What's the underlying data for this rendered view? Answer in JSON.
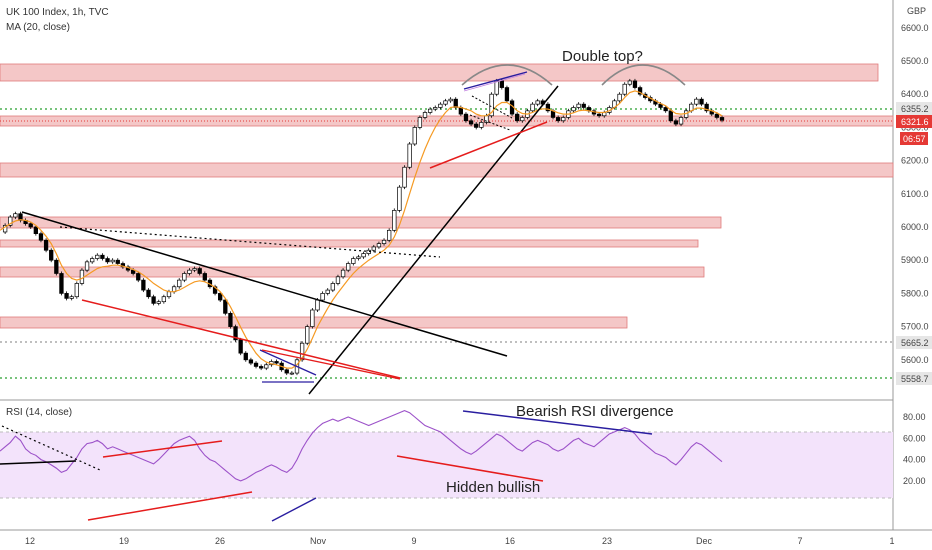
{
  "header": {
    "title": "UK 100 Index, 1h, TVC",
    "ma_label": "MA (20, close)",
    "rsi_label": "RSI (14, close)",
    "currency": "GBP"
  },
  "annotations": {
    "double_top": "Double top?",
    "bearish_div": "Bearish RSI divergence",
    "hidden_bullish": "Hidden bullish"
  },
  "badges": {
    "upper_level": "6355.2",
    "last_price": "6321.6",
    "countdown": "06:57",
    "mid_level": "5665.2",
    "low_level": "5558.7"
  },
  "colors": {
    "candle": "#000000",
    "ma": "#f59a23",
    "rsi": "#9c52c9",
    "rsi_band": "#f3e3fb",
    "zone": "#f4c7c7",
    "zone_border": "#e07a7a",
    "red_line": "#e51c1c",
    "blue_line": "#2a1ea0",
    "green_dots": "#4caf50",
    "badge_red": "#e53935",
    "badge_gray": "#e6e6e6"
  },
  "chart_data": {
    "type": "line",
    "title": "UK 100 Index, 1h, TVC",
    "price_axis": {
      "ticks": [
        "6600.0",
        "6500.0",
        "6400.0",
        "6300.0",
        "6200.0",
        "6100.0",
        "6000.0",
        "5900.0",
        "5800.0",
        "5700.0",
        "5600.0"
      ],
      "range": [
        5525,
        6650
      ]
    },
    "rsi_axis": {
      "ticks": [
        "80.00",
        "60.00",
        "40.00",
        "20.00"
      ],
      "range": [
        12,
        90
      ],
      "band": [
        30,
        70
      ]
    },
    "x_ticks": [
      "12",
      "19",
      "26",
      "Nov",
      "9",
      "16",
      "23",
      "Dec",
      "7",
      "1"
    ],
    "series": [
      {
        "name": "UK 100 Index",
        "values": [
          5985,
          6005,
          6030,
          6040,
          6020,
          6010,
          6000,
          5980,
          5960,
          5930,
          5900,
          5860,
          5800,
          5785,
          5790,
          5830,
          5870,
          5895,
          5905,
          5915,
          5905,
          5895,
          5900,
          5890,
          5880,
          5870,
          5860,
          5840,
          5810,
          5790,
          5770,
          5775,
          5790,
          5805,
          5820,
          5840,
          5860,
          5870,
          5875,
          5860,
          5840,
          5820,
          5800,
          5780,
          5740,
          5700,
          5660,
          5620,
          5600,
          5590,
          5580,
          5575,
          5585,
          5595,
          5590,
          5570,
          5560,
          5560,
          5600,
          5650,
          5700,
          5750,
          5780,
          5800,
          5810,
          5830,
          5850,
          5870,
          5890,
          5905,
          5910,
          5920,
          5930,
          5940,
          5950,
          5960,
          5990,
          6050,
          6120,
          6180,
          6250,
          6300,
          6330,
          6345,
          6355,
          6360,
          6370,
          6380,
          6385,
          6360,
          6340,
          6320,
          6310,
          6300,
          6315,
          6335,
          6400,
          6440,
          6420,
          6380,
          6340,
          6320,
          6330,
          6350,
          6370,
          6380,
          6370,
          6350,
          6330,
          6320,
          6330,
          6350,
          6360,
          6370,
          6360,
          6350,
          6340,
          6335,
          6345,
          6360,
          6380,
          6400,
          6430,
          6440,
          6420,
          6400,
          6390,
          6380,
          6370,
          6360,
          6350,
          6320,
          6310,
          6330,
          6350,
          6370,
          6385,
          6370,
          6350,
          6340,
          6330,
          6321.6
        ]
      },
      {
        "name": "MA (20, close)",
        "values": [
          5990,
          6000,
          6010,
          6018,
          6022,
          6020,
          6015,
          6005,
          5990,
          5972,
          5950,
          5920,
          5885,
          5860,
          5845,
          5840,
          5845,
          5855,
          5865,
          5875,
          5880,
          5882,
          5885,
          5885,
          5882,
          5878,
          5872,
          5865,
          5855,
          5843,
          5830,
          5820,
          5810,
          5805,
          5805,
          5810,
          5818,
          5827,
          5835,
          5838,
          5835,
          5828,
          5818,
          5805,
          5785,
          5760,
          5730,
          5698,
          5668,
          5643,
          5620,
          5603,
          5593,
          5588,
          5585,
          5580,
          5575,
          5575,
          5585,
          5605,
          5632,
          5665,
          5700,
          5728,
          5755,
          5780,
          5802,
          5822,
          5842,
          5860,
          5875,
          5888,
          5900,
          5910,
          5920,
          5930,
          5945,
          5970,
          6005,
          6050,
          6100,
          6150,
          6195,
          6235,
          6270,
          6300,
          6325,
          6345,
          6360,
          6362,
          6360,
          6355,
          6350,
          6340,
          6335,
          6335,
          6345,
          6365,
          6375,
          6375,
          6365,
          6350,
          6342,
          6340,
          6345,
          6352,
          6356,
          6355,
          6350,
          6344,
          6340,
          6340,
          6344,
          6350,
          6352,
          6350,
          6347,
          6345,
          6345,
          6350,
          6360,
          6372,
          6390,
          6405,
          6410,
          6405,
          6396,
          6388,
          6380,
          6372,
          6365,
          6352,
          6342,
          6340,
          6342,
          6350,
          6358,
          6358,
          6354,
          6350,
          6344,
          6335
        ]
      },
      {
        "name": "RSI (14, close)",
        "values": [
          48,
          52,
          56,
          62,
          58,
          50,
          46,
          44,
          40,
          38,
          35,
          32,
          28,
          30,
          36,
          42,
          50,
          55,
          56,
          58,
          55,
          50,
          52,
          50,
          48,
          46,
          44,
          42,
          40,
          38,
          36,
          40,
          45,
          50,
          55,
          58,
          60,
          62,
          58,
          50,
          44,
          40,
          38,
          34,
          30,
          26,
          22,
          20,
          22,
          25,
          28,
          30,
          33,
          35,
          33,
          30,
          28,
          32,
          40,
          50,
          58,
          65,
          70,
          74,
          76,
          78,
          76,
          78,
          80,
          78,
          76,
          74,
          72,
          74,
          76,
          78,
          80,
          82,
          84,
          86,
          84,
          80,
          76,
          72,
          70,
          68,
          66,
          62,
          58,
          54,
          50,
          47,
          45,
          48,
          52,
          56,
          60,
          64,
          62,
          58,
          54,
          50,
          48,
          52,
          56,
          58,
          56,
          54,
          50,
          48,
          50,
          54,
          58,
          60,
          56,
          54,
          52,
          56,
          60,
          64,
          66,
          68,
          70,
          68,
          64,
          58,
          54,
          50,
          46,
          44,
          42,
          38,
          35,
          40,
          46,
          52,
          56,
          54,
          50,
          46,
          42,
          38
        ]
      }
    ],
    "horizontal_levels": [
      {
        "label": "6355.2"
      },
      {
        "label": "5665.2"
      },
      {
        "label": "5558.7"
      }
    ]
  }
}
